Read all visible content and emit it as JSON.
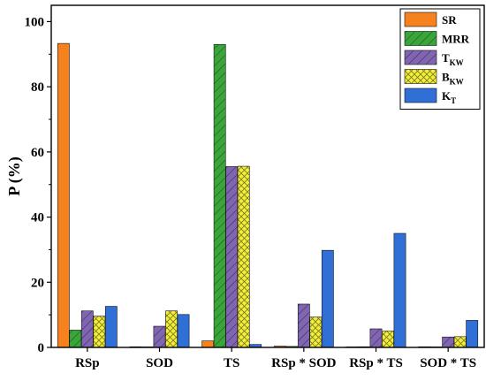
{
  "chart_data": {
    "type": "bar",
    "ylabel": "P (%)",
    "ylim": [
      0,
      105
    ],
    "yticks": [
      0,
      20,
      40,
      60,
      80,
      100
    ],
    "categories": [
      "RSp",
      "SOD",
      "TS",
      "RSp * SOD",
      "RSp * TS",
      "SOD * TS"
    ],
    "legend_position": "top-right",
    "series": [
      {
        "name": "SR",
        "legend_main": "SR",
        "legend_sub": "",
        "color": "#f5821f",
        "pattern": "solid",
        "values": [
          93.3,
          0.2,
          2.0,
          0.4,
          0.1,
          0.2
        ]
      },
      {
        "name": "MRR",
        "legend_main": "MRR",
        "legend_sub": "",
        "color": "#3aa63a",
        "pattern": "diagonal",
        "values": [
          5.3,
          0.1,
          93.0,
          0.3,
          0.2,
          0.1
        ]
      },
      {
        "name": "TKW",
        "legend_main": "T",
        "legend_sub": "KW",
        "color": "#8066b0",
        "pattern": "diagonal",
        "values": [
          11.2,
          6.5,
          55.5,
          13.3,
          5.7,
          3.2
        ]
      },
      {
        "name": "BKW",
        "legend_main": "B",
        "legend_sub": "KW",
        "color": "#f2ef3a",
        "pattern": "crosshatch",
        "values": [
          9.6,
          11.2,
          55.6,
          9.3,
          5.0,
          3.3
        ]
      },
      {
        "name": "KT",
        "legend_main": "K",
        "legend_sub": "T",
        "color": "#2f6fd6",
        "pattern": "solid",
        "values": [
          12.6,
          10.1,
          0.9,
          29.8,
          35.0,
          8.3
        ]
      }
    ]
  }
}
